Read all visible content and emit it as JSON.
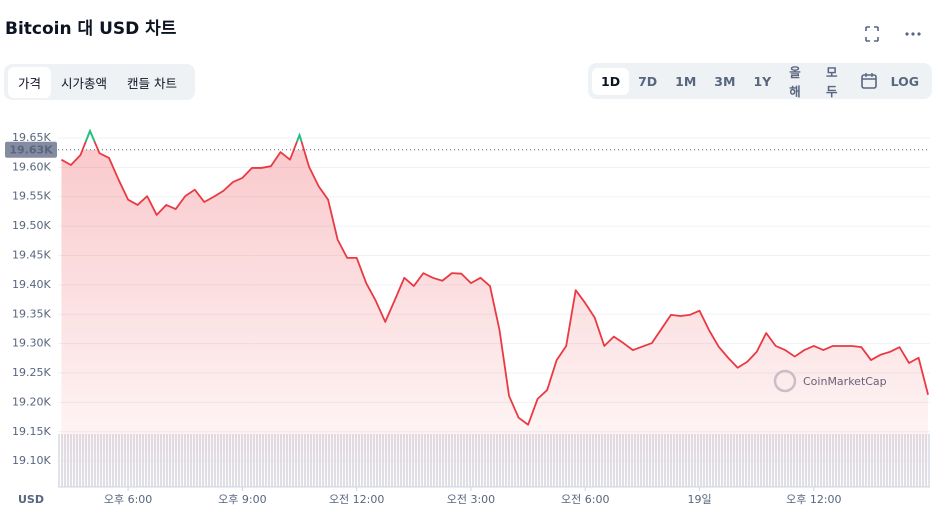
{
  "header": {
    "title": "Bitcoin 대 USD 차트"
  },
  "tabs": [
    "가격",
    "시가총액",
    "캔들 차트"
  ],
  "ranges": [
    "1D",
    "7D",
    "1M",
    "3M",
    "1Y",
    "올해",
    "모두"
  ],
  "log_button": "LOG",
  "chart_data": {
    "type": "line",
    "x_axis_label": "USD",
    "watermark": "CoinMarketCap",
    "current_price": {
      "value": 19630,
      "label": "19.63K"
    },
    "x": [
      16.25,
      16.5,
      16.75,
      17,
      17.25,
      17.5,
      17.75,
      18,
      18.25,
      18.5,
      18.75,
      19,
      19.25,
      19.5,
      19.75,
      20,
      20.25,
      20.5,
      20.75,
      21,
      21.25,
      21.5,
      21.75,
      22,
      22.25,
      22.5,
      22.75,
      23,
      23.25,
      23.5,
      23.75,
      24,
      24.25,
      24.5,
      24.75,
      25,
      25.25,
      25.5,
      25.75,
      26,
      26.25,
      26.5,
      26.75,
      27,
      27.25,
      27.5,
      27.75,
      28,
      28.25,
      28.5,
      28.75,
      29,
      29.25,
      29.5,
      29.75,
      30,
      30.25,
      30.5,
      30.75,
      31,
      31.25,
      31.5,
      31.75,
      32,
      32.25,
      32.5,
      32.75,
      33,
      33.25,
      33.5,
      33.75,
      34,
      34.25,
      34.5,
      34.75,
      35,
      35.25,
      35.5,
      35.75,
      36,
      36.25,
      36.5,
      36.75,
      37,
      37.25,
      37.5,
      37.75,
      38,
      38.25,
      38.5,
      38.75,
      39
    ],
    "series": [
      {
        "name": "Bitcoin",
        "color": "#ea3943",
        "values": [
          19613,
          19604,
          19621,
          19662,
          19624,
          19616,
          19579,
          19545,
          19536,
          19551,
          19519,
          19536,
          19529,
          19551,
          19562,
          19541,
          19550,
          19560,
          19575,
          19582,
          19599,
          19599,
          19602,
          19626,
          19613,
          19655,
          19601,
          19568,
          19545,
          19477,
          19446,
          19446,
          19403,
          19373,
          19337,
          19374,
          19412,
          19398,
          19420,
          19412,
          19407,
          19420,
          19419,
          19403,
          19412,
          19398,
          19323,
          19211,
          19174,
          19162,
          19206,
          19221,
          19272,
          19296,
          19391,
          19369,
          19344,
          19296,
          19312,
          19301,
          19289,
          19295,
          19301,
          19325,
          19349,
          19347,
          19349,
          19356,
          19323,
          19295,
          19276,
          19259,
          19269,
          19286,
          19318,
          19296,
          19289,
          19278,
          19289,
          19296,
          19289,
          19296,
          19296,
          19296,
          19294,
          19272,
          19281,
          19286,
          19294,
          19267,
          19276,
          19213
        ]
      }
    ],
    "up_color": "#16c784",
    "xlim": [
      16.16,
      39.05
    ],
    "xticks": [
      {
        "value": 18,
        "label": "오후 6:00"
      },
      {
        "value": 21,
        "label": "오후 9:00"
      },
      {
        "value": 24,
        "label": "오전 12:00"
      },
      {
        "value": 27,
        "label": "오전 3:00"
      },
      {
        "value": 30,
        "label": "오전 6:00"
      },
      {
        "value": 33,
        "label": "19일"
      },
      {
        "value": 36,
        "label": "오후 12:00"
      }
    ],
    "ylim": [
      19056,
      19684
    ],
    "yticks": [
      {
        "value": 19100,
        "label": "19.10K"
      },
      {
        "value": 19150,
        "label": "19.15K"
      },
      {
        "value": 19200,
        "label": "19.20K"
      },
      {
        "value": 19250,
        "label": "19.25K"
      },
      {
        "value": 19300,
        "label": "19.30K"
      },
      {
        "value": 19350,
        "label": "19.35K"
      },
      {
        "value": 19400,
        "label": "19.40K"
      },
      {
        "value": 19450,
        "label": "19.45K"
      },
      {
        "value": 19500,
        "label": "19.50K"
      },
      {
        "value": 19550,
        "label": "19.55K"
      },
      {
        "value": 19600,
        "label": "19.60K"
      },
      {
        "value": 19650,
        "label": "19.65K"
      }
    ],
    "grid": true
  }
}
